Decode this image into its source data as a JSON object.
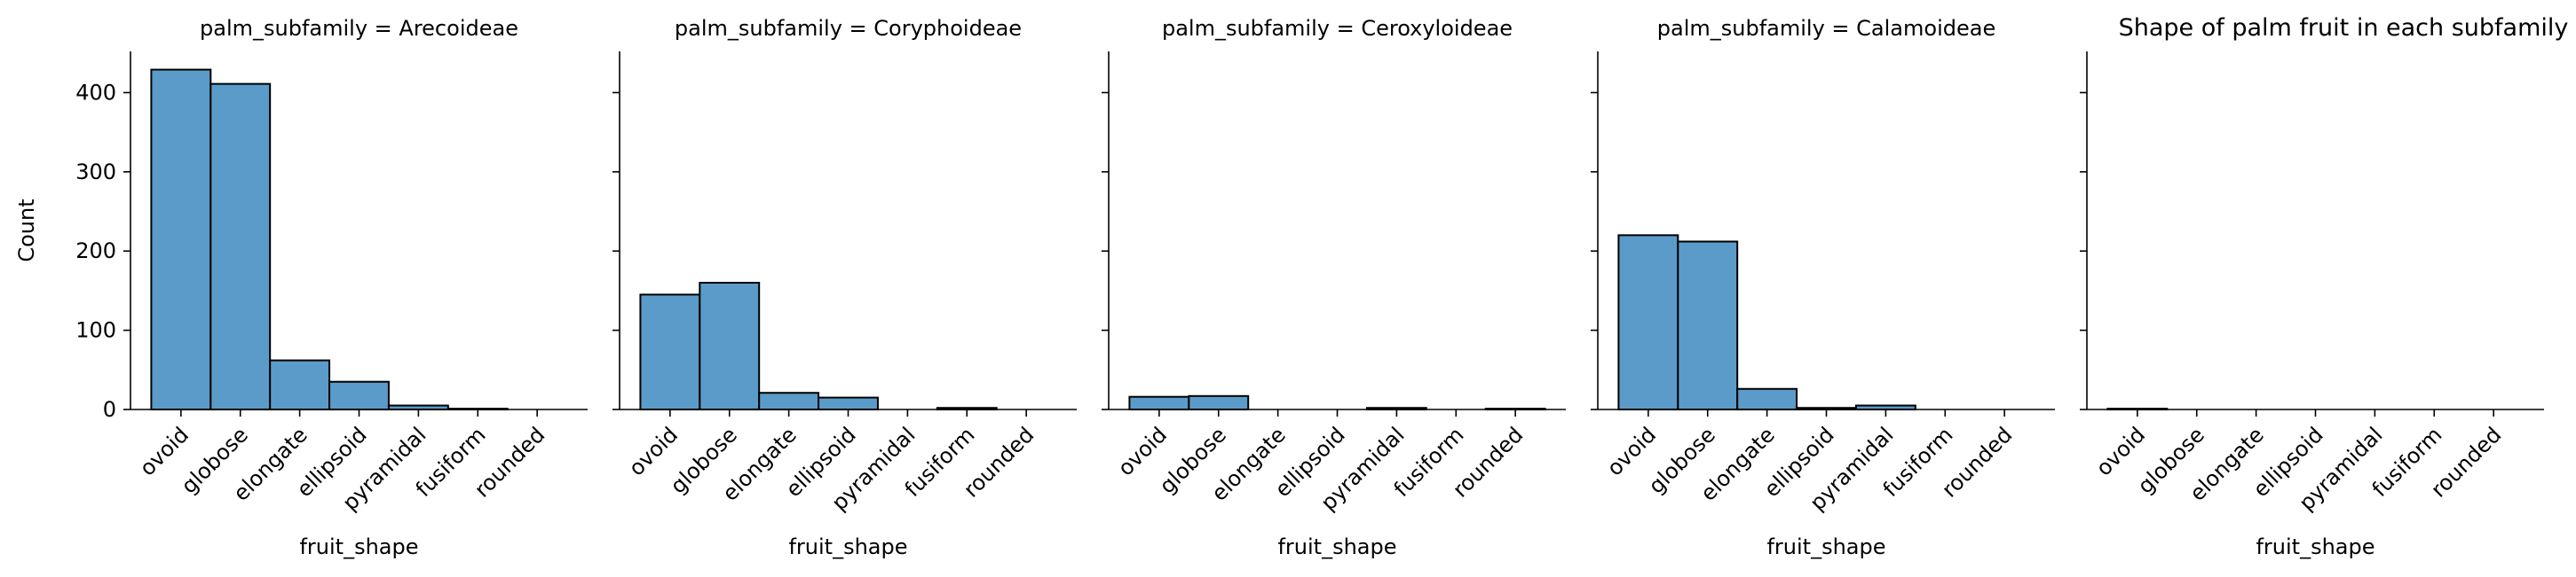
{
  "chart_data": {
    "type": "bar",
    "title": "Shape of palm fruit in each subfamily",
    "categories": [
      "ovoid",
      "globose",
      "elongate",
      "ellipsoid",
      "pyramidal",
      "fusiform",
      "rounded"
    ],
    "xlabel": "fruit_shape",
    "ylabel": "Count",
    "ylim": [
      0,
      452
    ],
    "yticks": [
      "0",
      "100",
      "200",
      "300",
      "400"
    ],
    "bar_color": "#5a9bc9",
    "edge_color": "#000000",
    "panels": [
      {
        "label": "palm_subfamily = Arecoideae",
        "values": [
          429,
          411,
          62,
          35,
          5,
          1,
          0
        ]
      },
      {
        "label": "palm_subfamily = Coryphoideae",
        "values": [
          145,
          160,
          21,
          15,
          0,
          2,
          0
        ]
      },
      {
        "label": "palm_subfamily = Ceroxyloideae",
        "values": [
          16,
          17,
          0,
          0,
          2,
          0,
          1
        ]
      },
      {
        "label": "palm_subfamily = Calamoideae",
        "values": [
          220,
          212,
          26,
          2,
          5,
          0,
          0
        ]
      },
      {
        "label": "",
        "values": [
          1,
          0,
          0,
          0,
          0,
          0,
          0
        ]
      }
    ]
  }
}
